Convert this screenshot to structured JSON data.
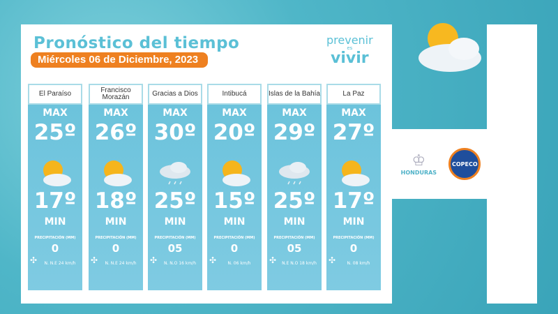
{
  "header": {
    "title": "Pronóstico del tiempo",
    "date": "Miércoles 06  de Diciembre, 2023"
  },
  "brand": {
    "line1": "prevenir",
    "line2": "es",
    "line3": "vivir"
  },
  "labels": {
    "max": "MAX",
    "min": "MIN",
    "precip": "PRECIPITACIÓN (MM)"
  },
  "columns": [
    {
      "name": "El Paraíso",
      "max": "25º",
      "min": "17º",
      "icon": "sun-cloud-icon",
      "precip": "0",
      "wind": "N.  N.E 24 km/h"
    },
    {
      "name": "Francisco Morazán",
      "max": "26º",
      "min": "18º",
      "icon": "sun-cloud-icon",
      "precip": "0",
      "wind": "N.  N.E 24 km/h"
    },
    {
      "name": "Gracias a Dios",
      "max": "30º",
      "min": "25º",
      "icon": "rain-cloud-icon",
      "precip": "05",
      "wind": "N.  N.O  16 km/h"
    },
    {
      "name": "Intibucá",
      "max": "20º",
      "min": "15º",
      "icon": "sun-cloud-icon",
      "precip": "0",
      "wind": "N.  06 km/h"
    },
    {
      "name": "Islas de la Bahía",
      "max": "29º",
      "min": "25º",
      "icon": "rain-cloud-icon",
      "precip": "05",
      "wind": "N.E  N.O  18 km/h"
    },
    {
      "name": "La Paz",
      "max": "27º",
      "min": "17º",
      "icon": "sun-cloud-icon",
      "precip": "0",
      "wind": "N.   08  km/h"
    }
  ],
  "logos": {
    "honduras": "HONDURAS",
    "copeco": "COPECO"
  },
  "colors": {
    "accent": "#5bc0d6",
    "orange": "#ee8020",
    "card": "#6cc3dc"
  }
}
